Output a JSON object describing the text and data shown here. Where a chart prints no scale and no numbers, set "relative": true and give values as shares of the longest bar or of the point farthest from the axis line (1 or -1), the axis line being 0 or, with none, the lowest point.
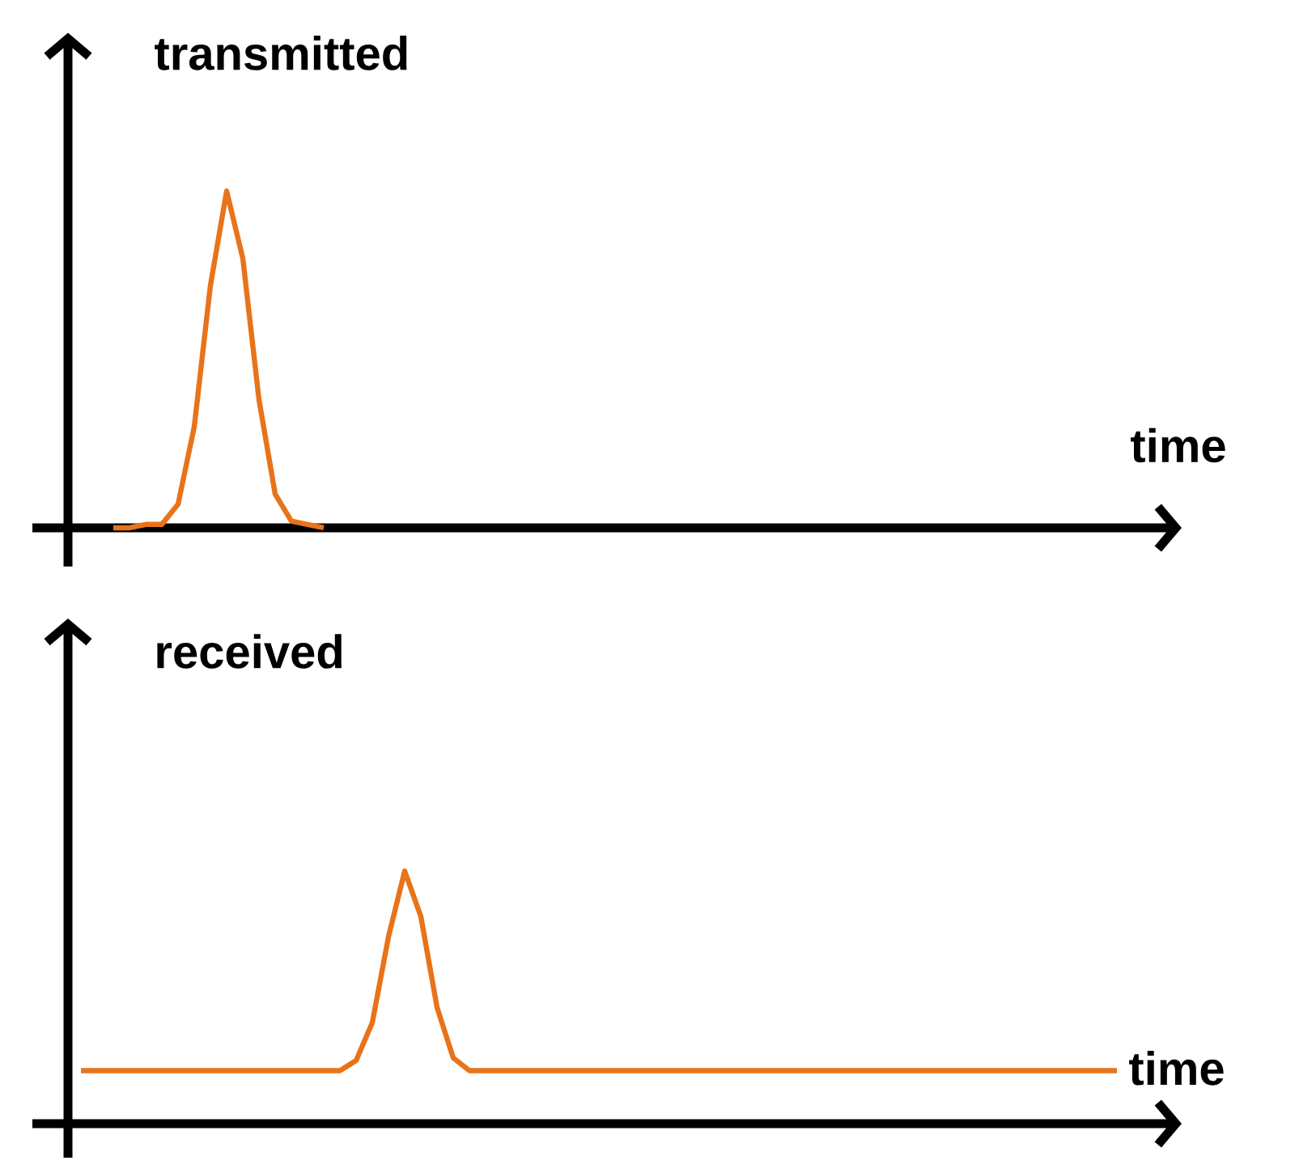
{
  "chart_data": [
    {
      "type": "line",
      "relative": true,
      "ylabel": "transmitted",
      "xlabel": "time",
      "color": "#e8731a",
      "categories": [
        null,
        null,
        null,
        null,
        null,
        null,
        null,
        null,
        null,
        null,
        null,
        null,
        null,
        null,
        null,
        null,
        null,
        null,
        null,
        null,
        null,
        null,
        null,
        null,
        null,
        null,
        null,
        null,
        null,
        null,
        null,
        null,
        null,
        null,
        null,
        null,
        null,
        null,
        null,
        null,
        null,
        null,
        null,
        null,
        null,
        null,
        null,
        null,
        null,
        null,
        null,
        null,
        null,
        null,
        null,
        null,
        null,
        null,
        null,
        null,
        null,
        null,
        null,
        null,
        null,
        null,
        null
      ],
      "values": [
        null,
        null,
        0,
        0,
        0.01,
        0.01,
        0.07,
        0.3,
        0.72,
        1,
        0.8,
        0.38,
        0.1,
        0.02,
        0.01,
        0,
        null,
        null,
        null,
        null,
        null,
        null,
        null,
        null,
        null,
        null,
        null,
        null,
        null,
        null,
        null,
        null,
        null,
        null,
        null,
        null,
        null,
        null,
        null,
        null,
        null,
        null,
        null,
        null,
        null,
        null,
        null,
        null,
        null,
        null,
        null,
        null,
        null,
        null,
        null,
        null,
        null,
        null,
        null,
        null,
        null,
        null,
        null,
        null,
        null,
        null,
        null
      ]
    },
    {
      "type": "line",
      "relative": true,
      "ylabel": "received",
      "xlabel": "time",
      "color": "#e8731a",
      "categories": [
        null,
        null,
        null,
        null,
        null,
        null,
        null,
        null,
        null,
        null,
        null,
        null,
        null,
        null,
        null,
        null,
        null,
        null,
        null,
        null,
        null,
        null,
        null,
        null,
        null,
        null,
        null,
        null,
        null,
        null,
        null,
        null,
        null,
        null,
        null,
        null,
        null,
        null,
        null,
        null,
        null,
        null,
        null,
        null,
        null,
        null,
        null,
        null,
        null,
        null,
        null,
        null,
        null,
        null,
        null,
        null,
        null,
        null,
        null,
        null,
        null,
        null,
        null,
        null,
        null,
        null,
        null
      ],
      "values": [
        0.21,
        0.21,
        0.21,
        0.21,
        0.21,
        0.21,
        0.21,
        0.21,
        0.21,
        0.21,
        0.21,
        0.21,
        0.21,
        0.21,
        0.21,
        0.21,
        0.21,
        0.25,
        0.4,
        0.74,
        1,
        0.82,
        0.46,
        0.26,
        0.21,
        0.21,
        0.21,
        0.21,
        0.21,
        0.21,
        0.21,
        0.21,
        0.21,
        0.21,
        0.21,
        0.21,
        0.21,
        0.21,
        0.21,
        0.21,
        0.21,
        0.21,
        0.21,
        0.21,
        0.21,
        0.21,
        0.21,
        0.21,
        0.21,
        0.21,
        0.21,
        0.21,
        0.21,
        0.21,
        0.21,
        0.21,
        0.21,
        0.21,
        0.21,
        0.21,
        0.21,
        0.21,
        0.21,
        0.21,
        0.21,
        null,
        null
      ]
    }
  ]
}
